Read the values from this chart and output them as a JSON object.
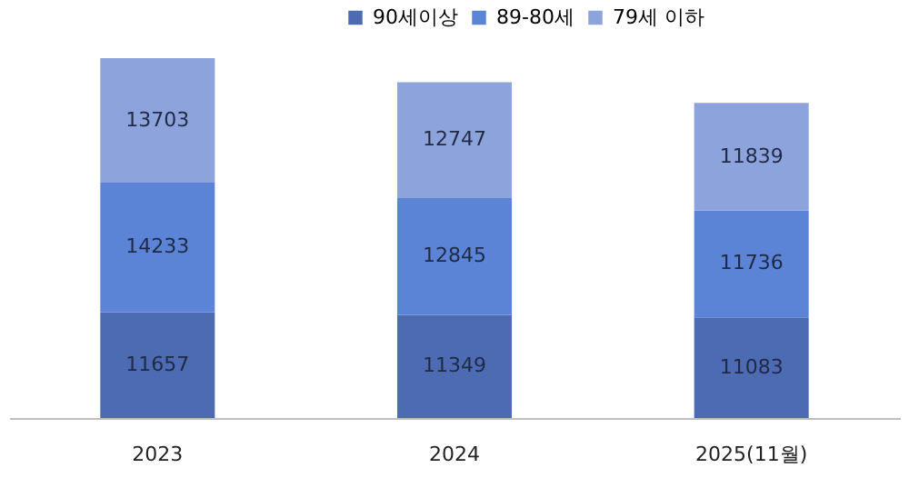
{
  "chart_data": {
    "type": "bar",
    "stacked": true,
    "data_labels": true,
    "legend": "top",
    "grid": false,
    "categories": [
      "2023",
      "2024",
      "2025(11월)"
    ],
    "series": [
      {
        "name": "90세이상",
        "color": "#4d6bb3",
        "values": [
          11657,
          11349,
          11083
        ]
      },
      {
        "name": "89-80세",
        "color": "#5b84d6",
        "values": [
          14233,
          12845,
          11736
        ]
      },
      {
        "name": "79세 이하",
        "color": "#8da3dc",
        "values": [
          13703,
          12747,
          11839
        ]
      }
    ]
  }
}
